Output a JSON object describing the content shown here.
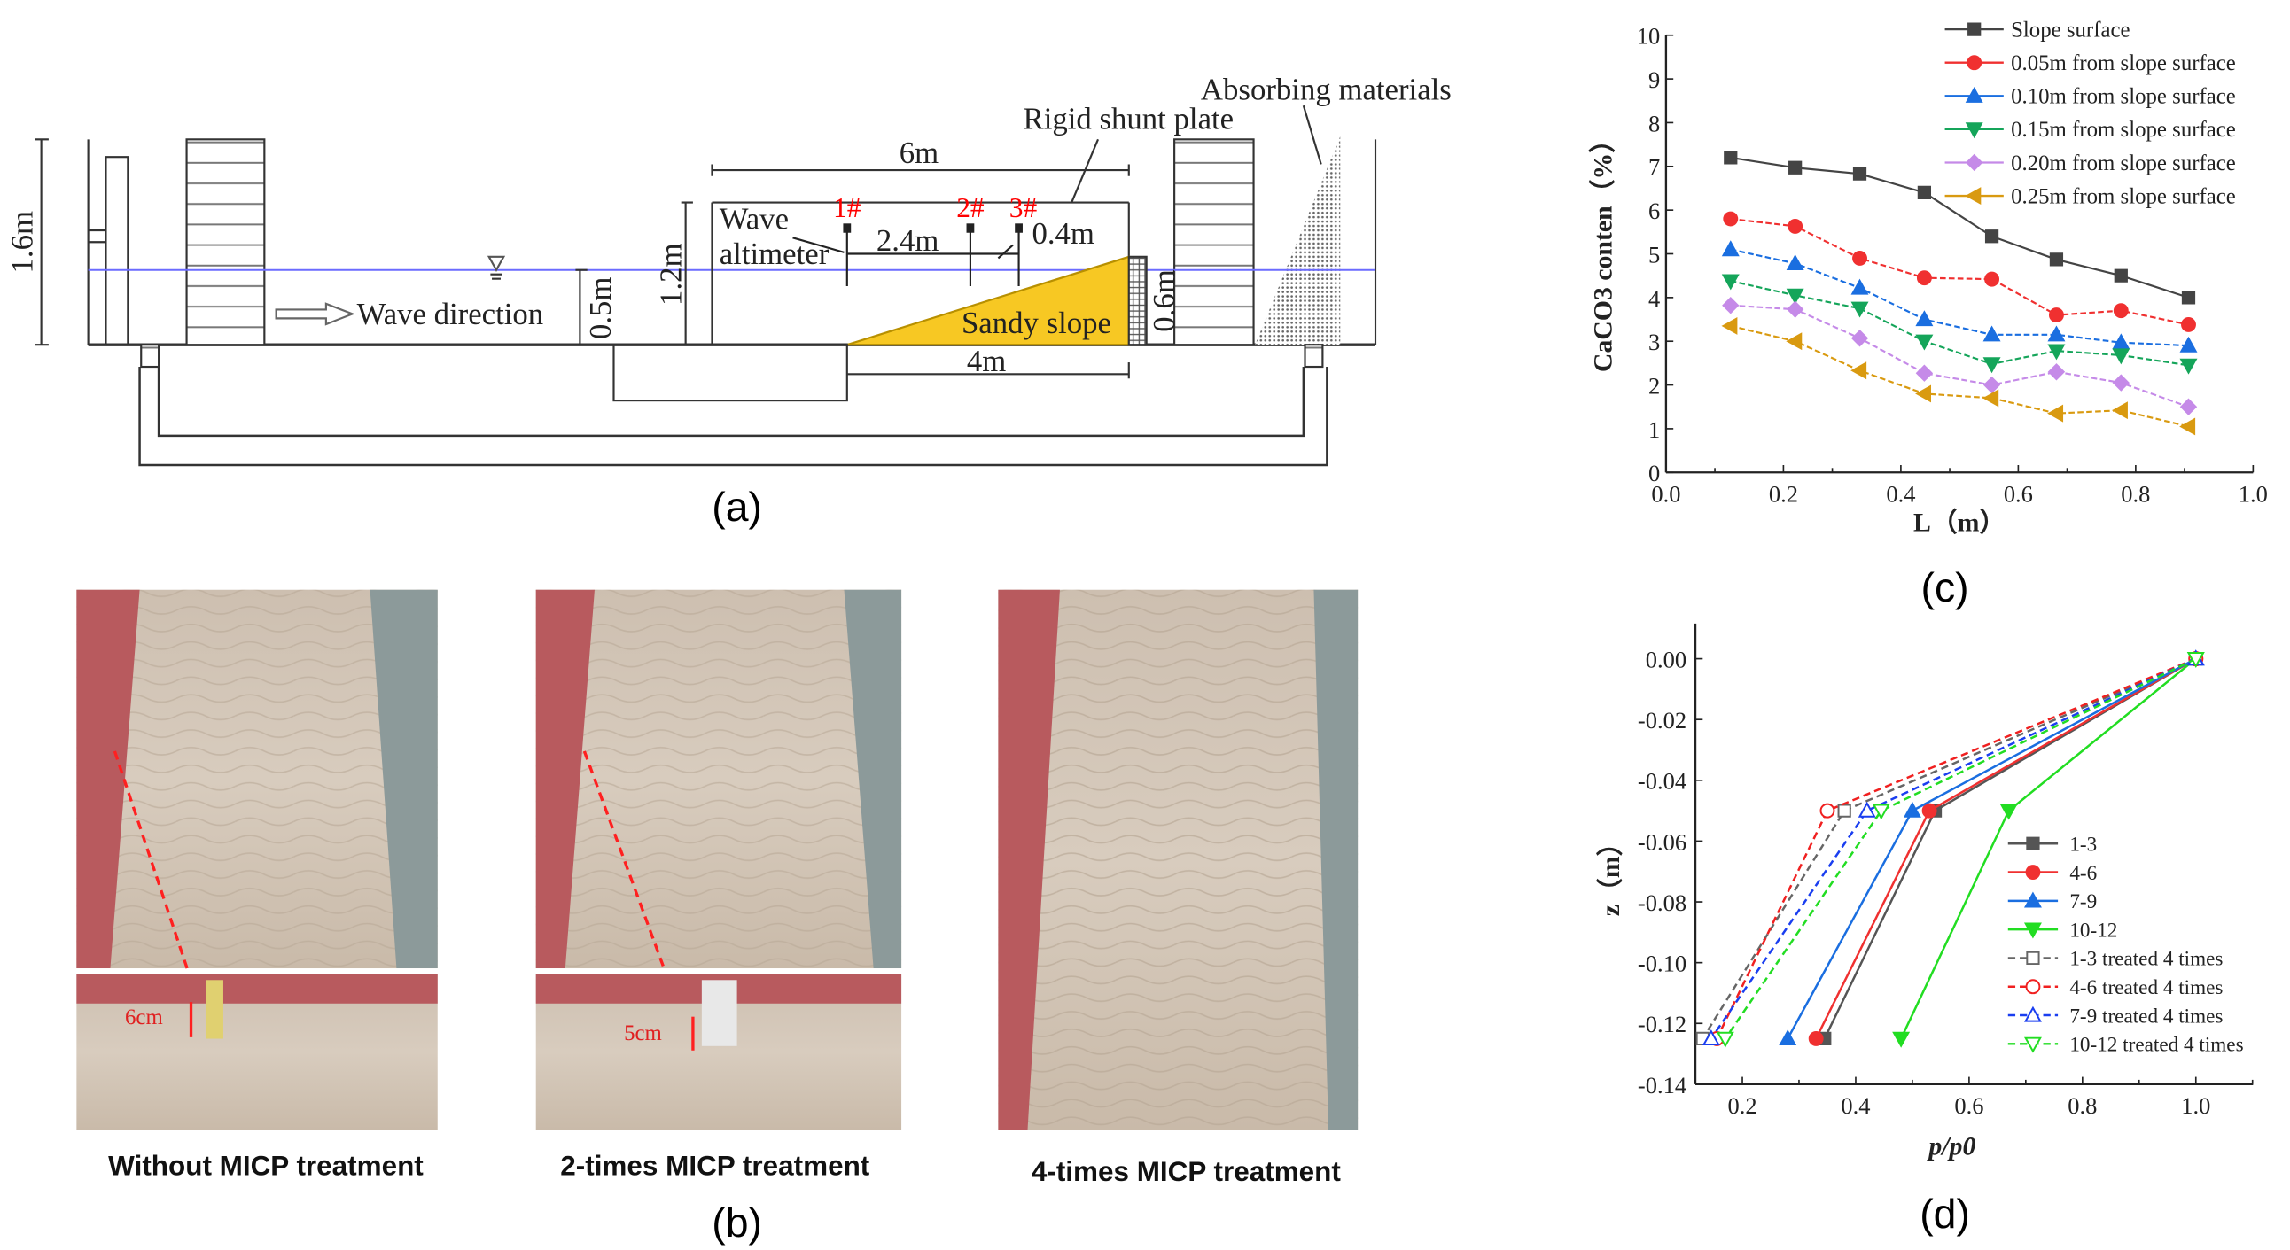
{
  "panel_a": {
    "label": "(a)",
    "height_label": "1.6m",
    "wave_direction": "Wave direction",
    "water_depth": "0.5m",
    "frame_height": "1.2m",
    "frame_width": "6m",
    "altimeter_line1": "Wave",
    "altimeter_line2": "altimeter",
    "probes": [
      "1#",
      "2#",
      "3#"
    ],
    "spacing_1": "2.4m",
    "spacing_2": "0.4m",
    "slope_label": "Sandy slope",
    "slope_height": "0.6m",
    "slope_length": "4m",
    "shunt_label": "Rigid shunt plate",
    "absorb_label": "Absorbing materials",
    "colors": {
      "water": "#6b6bff",
      "sand": "#f7c823",
      "probe": "#ff0000"
    }
  },
  "panel_b": {
    "label": "(b)",
    "photos": [
      {
        "caption": "Without MICP treatment",
        "measure": "6cm"
      },
      {
        "caption": "2-times MICP treatment",
        "measure": "5cm"
      },
      {
        "caption": "4-times MICP treatment"
      }
    ]
  },
  "panel_c_label": "(c)",
  "panel_d_label": "(d)",
  "chart_data": [
    {
      "type": "line",
      "title": "",
      "xlabel": "L（m）",
      "ylabel": "CaCO3 conten（%）",
      "xlim": [
        0,
        1.0
      ],
      "ylim": [
        0,
        10
      ],
      "xticks": [
        "0.0",
        "0.2",
        "0.4",
        "0.6",
        "0.8",
        "1.0"
      ],
      "yticks": [
        "0",
        "1",
        "2",
        "3",
        "4",
        "5",
        "6",
        "7",
        "8",
        "9",
        "10"
      ],
      "legend": "top-right",
      "x": [
        0.11,
        0.22,
        0.33,
        0.44,
        0.555,
        0.665,
        0.775,
        0.89
      ],
      "series": [
        {
          "name": "Slope surface",
          "color": "#444444",
          "marker": "square",
          "values": [
            7.2,
            6.97,
            6.83,
            6.4,
            5.4,
            4.87,
            4.5,
            4.0
          ]
        },
        {
          "name": "0.05m from slope surface",
          "color": "#f03030",
          "marker": "circle",
          "values": [
            5.8,
            5.63,
            4.9,
            4.45,
            4.42,
            3.6,
            3.7,
            3.38
          ]
        },
        {
          "name": "0.10m from slope surface",
          "color": "#1a6ee0",
          "marker": "triangle-up",
          "values": [
            5.1,
            4.78,
            4.22,
            3.5,
            3.15,
            3.15,
            2.97,
            2.9
          ]
        },
        {
          "name": "0.15m from slope surface",
          "color": "#15a55a",
          "marker": "triangle-down",
          "values": [
            4.38,
            4.05,
            3.75,
            3.0,
            2.48,
            2.78,
            2.68,
            2.45
          ]
        },
        {
          "name": "0.20m from slope surface",
          "color": "#c58ae8",
          "marker": "diamond",
          "values": [
            3.82,
            3.73,
            3.07,
            2.27,
            2.0,
            2.3,
            2.05,
            1.5
          ]
        },
        {
          "name": "0.25m from slope surface",
          "color": "#d99a10",
          "marker": "triangle-left",
          "values": [
            3.35,
            3.0,
            2.33,
            1.8,
            1.7,
            1.35,
            1.42,
            1.05
          ]
        }
      ]
    },
    {
      "type": "line",
      "title": "",
      "xlabel": "p/p0",
      "ylabel": "z（m）",
      "xlim": [
        0.12,
        1.1
      ],
      "ylim": [
        -0.14,
        0.01
      ],
      "xticks": [
        "0.2",
        "0.4",
        "0.6",
        "0.8",
        "1.0"
      ],
      "yticks": [
        "0.00",
        "-0.02",
        "-0.04",
        "-0.06",
        "-0.08",
        "-0.10",
        "-0.12",
        "-0.14"
      ],
      "legend": "right",
      "y": [
        0,
        -0.05,
        -0.125
      ],
      "series": [
        {
          "name": "1-3",
          "color": "#555555",
          "marker": "square",
          "dashed": false,
          "values": [
            1.0,
            0.54,
            0.345
          ]
        },
        {
          "name": "4-6",
          "color": "#f03030",
          "marker": "circle",
          "dashed": false,
          "values": [
            1.0,
            0.53,
            0.33
          ]
        },
        {
          "name": "7-9",
          "color": "#1a6ee0",
          "marker": "triangle-up",
          "dashed": false,
          "values": [
            1.0,
            0.5,
            0.28
          ]
        },
        {
          "name": "10-12",
          "color": "#22dd22",
          "marker": "triangle-down",
          "dashed": false,
          "values": [
            1.0,
            0.67,
            0.48
          ]
        },
        {
          "name": "1-3 treated 4 times",
          "color": "#666666",
          "marker": "square-open",
          "dashed": true,
          "values": [
            1.0,
            0.38,
            0.13
          ]
        },
        {
          "name": "4-6 treated 4 times",
          "color": "#f02020",
          "marker": "circle-open",
          "dashed": true,
          "values": [
            1.0,
            0.35,
            0.155
          ]
        },
        {
          "name": "7-9 treated 4 times",
          "color": "#1a3ef0",
          "marker": "triangle-up-open",
          "dashed": true,
          "values": [
            1.0,
            0.42,
            0.145
          ]
        },
        {
          "name": "10-12 treated 4 times",
          "color": "#22dd22",
          "marker": "triangle-down-open",
          "dashed": true,
          "values": [
            1.0,
            0.445,
            0.17
          ]
        }
      ]
    }
  ]
}
